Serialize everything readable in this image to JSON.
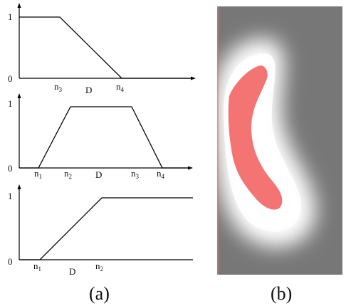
{
  "panel_a": {
    "caption": "(a)",
    "plots": [
      {
        "y_ticks": {
          "top": "1",
          "bottom": "0"
        },
        "x_marks": [
          {
            "base": "n",
            "sub": "3"
          },
          {
            "base": "D",
            "sub": ""
          },
          {
            "base": "n",
            "sub": "4"
          }
        ],
        "membership_points": [
          [
            0,
            1
          ],
          [
            1,
            1
          ],
          [
            2,
            0
          ],
          [
            4,
            0
          ]
        ]
      },
      {
        "y_ticks": {
          "top": "1",
          "bottom": "0"
        },
        "x_marks": [
          {
            "base": "n",
            "sub": "1"
          },
          {
            "base": "n",
            "sub": "2"
          },
          {
            "base": "D",
            "sub": ""
          },
          {
            "base": "n",
            "sub": "3"
          },
          {
            "base": "n",
            "sub": "4"
          }
        ],
        "membership_points": [
          [
            0,
            0
          ],
          [
            1,
            0
          ],
          [
            2,
            1
          ],
          [
            3,
            1
          ],
          [
            4,
            0
          ],
          [
            5,
            0
          ]
        ]
      },
      {
        "y_ticks": {
          "top": "1",
          "bottom": "0"
        },
        "x_marks": [
          {
            "base": "n",
            "sub": "1"
          },
          {
            "base": "D",
            "sub": ""
          },
          {
            "base": "n",
            "sub": "2"
          }
        ],
        "membership_points": [
          [
            0,
            0
          ],
          [
            1,
            0
          ],
          [
            2,
            1
          ],
          [
            4,
            1
          ]
        ]
      }
    ]
  },
  "panel_b": {
    "caption": "(b)",
    "background_color": "#777777",
    "halo_color": "#ffffff",
    "shape_color": "#f47474"
  }
}
